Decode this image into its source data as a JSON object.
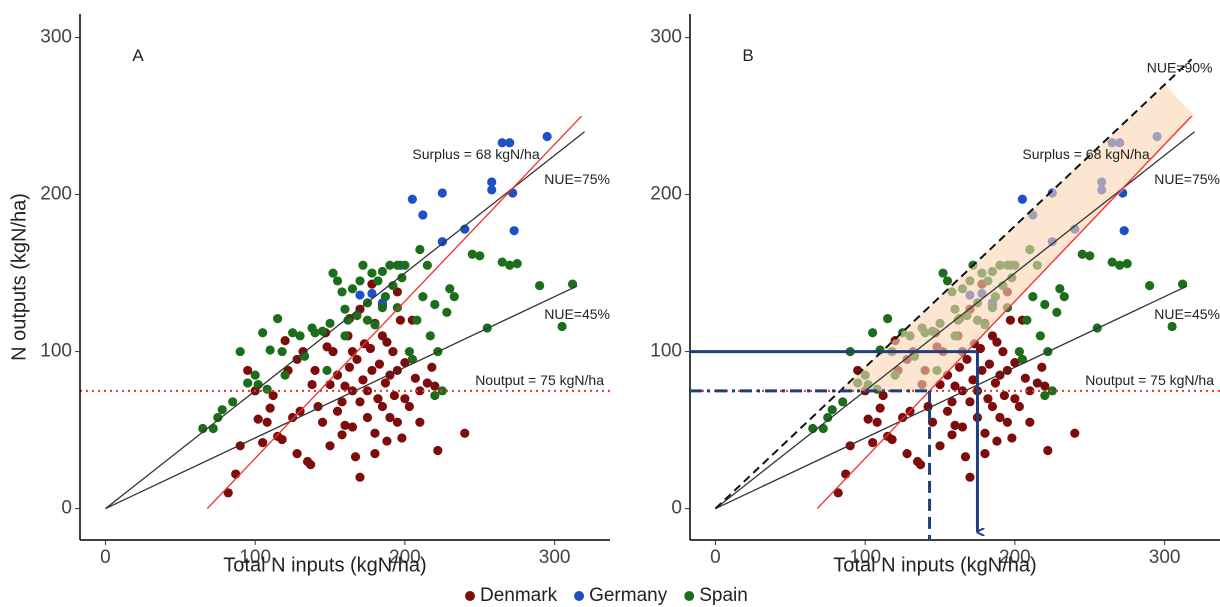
{
  "chart_data": {
    "type": "scatter",
    "xlabel": "Total N inputs (kgN/ha)",
    "ylabel": "N outputs (kgN/ha)",
    "xlim": [
      -17,
      337
    ],
    "ylim": [
      -20,
      315
    ],
    "xticks": [
      0,
      100,
      200,
      300
    ],
    "yticks": [
      0,
      100,
      200,
      300
    ],
    "legend": "bottom",
    "series": [
      {
        "name": "Denmark",
        "color": "#7d0c0c",
        "values": [
          [
            82,
            10
          ],
          [
            87,
            22
          ],
          [
            90,
            40
          ],
          [
            95,
            88
          ],
          [
            100,
            75
          ],
          [
            102,
            57
          ],
          [
            105,
            42
          ],
          [
            108,
            55
          ],
          [
            110,
            64
          ],
          [
            115,
            46
          ],
          [
            118,
            44
          ],
          [
            120,
            107
          ],
          [
            122,
            88
          ],
          [
            125,
            58
          ],
          [
            128,
            35
          ],
          [
            130,
            62
          ],
          [
            132,
            100
          ],
          [
            135,
            30
          ],
          [
            137,
            28
          ],
          [
            138,
            79
          ],
          [
            140,
            88
          ],
          [
            142,
            65
          ],
          [
            145,
            55
          ],
          [
            148,
            103
          ],
          [
            150,
            79
          ],
          [
            150,
            40
          ],
          [
            152,
            100
          ],
          [
            155,
            85
          ],
          [
            155,
            62
          ],
          [
            158,
            47
          ],
          [
            160,
            78
          ],
          [
            160,
            53
          ],
          [
            162,
            110
          ],
          [
            163,
            90
          ],
          [
            165,
            75
          ],
          [
            165,
            52
          ],
          [
            167,
            33
          ],
          [
            168,
            95
          ],
          [
            170,
            68
          ],
          [
            170,
            20
          ],
          [
            172,
            82
          ],
          [
            173,
            105
          ],
          [
            175,
            75
          ],
          [
            175,
            58
          ],
          [
            177,
            102
          ],
          [
            178,
            88
          ],
          [
            180,
            48
          ],
          [
            180,
            118
          ],
          [
            182,
            70
          ],
          [
            183,
            92
          ],
          [
            185,
            65
          ],
          [
            185,
            130
          ],
          [
            187,
            80
          ],
          [
            188,
            43
          ],
          [
            190,
            85
          ],
          [
            190,
            58
          ],
          [
            192,
            100
          ],
          [
            193,
            72
          ],
          [
            195,
            88
          ],
          [
            195,
            55
          ],
          [
            197,
            120
          ],
          [
            198,
            45
          ],
          [
            200,
            93
          ],
          [
            200,
            70
          ],
          [
            203,
            65
          ],
          [
            205,
            95
          ],
          [
            207,
            83
          ],
          [
            210,
            75
          ],
          [
            210,
            55
          ],
          [
            215,
            80
          ],
          [
            218,
            90
          ],
          [
            220,
            78
          ],
          [
            222,
            37
          ],
          [
            240,
            48
          ],
          [
            163,
            121
          ],
          [
            170,
            127
          ],
          [
            178,
            143
          ],
          [
            188,
            106
          ],
          [
            195,
            138
          ],
          [
            147,
            112
          ],
          [
            128,
            95
          ],
          [
            112,
            72
          ],
          [
            180,
            35
          ],
          [
            158,
            68
          ],
          [
            165,
            100
          ],
          [
            205,
            120
          ],
          [
            185,
            110
          ]
        ]
      },
      {
        "name": "Germany",
        "color": "#1f4fc4",
        "values": [
          [
            205,
            197
          ],
          [
            212,
            187
          ],
          [
            225,
            201
          ],
          [
            225,
            170
          ],
          [
            240,
            178
          ],
          [
            258,
            203
          ],
          [
            258,
            208
          ],
          [
            265,
            233
          ],
          [
            270,
            233
          ],
          [
            272,
            201
          ],
          [
            273,
            177
          ],
          [
            295,
            237
          ],
          [
            197,
            155
          ],
          [
            185,
            131
          ],
          [
            170,
            136
          ],
          [
            178,
            137
          ]
        ]
      },
      {
        "name": "Spain",
        "color": "#1c6e1c",
        "values": [
          [
            65,
            51
          ],
          [
            72,
            51
          ],
          [
            75,
            58
          ],
          [
            78,
            63
          ],
          [
            85,
            68
          ],
          [
            90,
            100
          ],
          [
            95,
            80
          ],
          [
            100,
            85
          ],
          [
            102,
            79
          ],
          [
            105,
            112
          ],
          [
            108,
            76
          ],
          [
            115,
            121
          ],
          [
            118,
            100
          ],
          [
            125,
            112
          ],
          [
            130,
            110
          ],
          [
            133,
            97
          ],
          [
            138,
            115
          ],
          [
            140,
            112
          ],
          [
            145,
            113
          ],
          [
            148,
            88
          ],
          [
            150,
            118
          ],
          [
            152,
            150
          ],
          [
            155,
            145
          ],
          [
            158,
            138
          ],
          [
            160,
            127
          ],
          [
            162,
            120
          ],
          [
            165,
            140
          ],
          [
            168,
            123
          ],
          [
            170,
            145
          ],
          [
            172,
            155
          ],
          [
            175,
            131
          ],
          [
            178,
            150
          ],
          [
            180,
            117
          ],
          [
            182,
            145
          ],
          [
            185,
            151
          ],
          [
            187,
            135
          ],
          [
            190,
            155
          ],
          [
            192,
            142
          ],
          [
            195,
            155
          ],
          [
            198,
            147
          ],
          [
            200,
            155
          ],
          [
            203,
            100
          ],
          [
            205,
            95
          ],
          [
            208,
            120
          ],
          [
            210,
            165
          ],
          [
            212,
            135
          ],
          [
            215,
            155
          ],
          [
            217,
            110
          ],
          [
            220,
            130
          ],
          [
            222,
            100
          ],
          [
            225,
            75
          ],
          [
            228,
            125
          ],
          [
            230,
            140
          ],
          [
            233,
            135
          ],
          [
            245,
            162
          ],
          [
            250,
            161
          ],
          [
            255,
            115
          ],
          [
            265,
            157
          ],
          [
            270,
            155
          ],
          [
            275,
            156
          ],
          [
            290,
            142
          ],
          [
            305,
            116
          ],
          [
            312,
            143
          ],
          [
            120,
            85
          ],
          [
            110,
            101
          ],
          [
            160,
            110
          ],
          [
            175,
            120
          ],
          [
            185,
            128
          ],
          [
            195,
            128
          ],
          [
            220,
            72
          ]
        ]
      }
    ],
    "panels": [
      {
        "label": "A",
        "lines": [
          {
            "label": "NUE=75%",
            "slope": 0.75,
            "intercept": 0,
            "x_range": [
              0,
              320
            ],
            "color": "#333333",
            "style": "solid"
          },
          {
            "label": "NUE=45%",
            "slope": 0.45,
            "intercept": 0,
            "x_range": [
              0,
              315
            ],
            "color": "#333333",
            "style": "solid"
          },
          {
            "label": "Surplus = 68 kgN/ha",
            "slope": 1,
            "intercept": -68,
            "x_range": [
              68,
              318
            ],
            "color": "#f03030",
            "style": "solid"
          },
          {
            "label": "Noutput = 75 kgN/ha",
            "slope": 0,
            "intercept": 75,
            "x_range": [
              -17,
              337
            ],
            "color": "#f03030",
            "style": "dotted"
          }
        ]
      },
      {
        "label": "B",
        "band": [
          [
            83,
            75
          ],
          [
            300,
            270
          ],
          [
            320,
            250
          ],
          [
            143,
            75
          ]
        ],
        "lines": [
          {
            "label": "NUE=75%",
            "slope": 0.75,
            "intercept": 0,
            "x_range": [
              0,
              320
            ],
            "color": "#333333",
            "style": "solid"
          },
          {
            "label": "NUE=45%",
            "slope": 0.45,
            "intercept": 0,
            "x_range": [
              0,
              315
            ],
            "color": "#333333",
            "style": "solid"
          },
          {
            "label": "Surplus = 68 kgN/ha",
            "slope": 1,
            "intercept": -68,
            "x_range": [
              68,
              318
            ],
            "color": "#f03030",
            "style": "solid"
          },
          {
            "label": "Noutput = 75 kgN/ha",
            "slope": 0,
            "intercept": 75,
            "x_range": [
              -17,
              337
            ],
            "color": "#f03030",
            "style": "dotted"
          },
          {
            "label": "NUE=90%",
            "slope": 0.9,
            "intercept": 0,
            "x_range": [
              0,
              318
            ],
            "color": "#111111",
            "style": "dashed"
          }
        ],
        "guides": [
          {
            "x": 175,
            "y": 100,
            "style": "solid"
          },
          {
            "x": 143,
            "y": 75,
            "style": "dashed"
          }
        ]
      }
    ]
  }
}
